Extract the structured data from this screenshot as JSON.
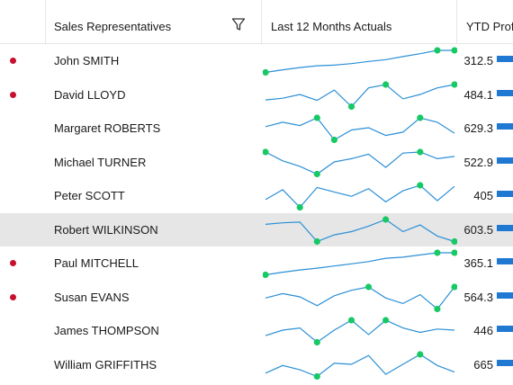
{
  "header": {
    "sales_rep": "Sales Representatives",
    "last12": "Last 12 Months Actuals",
    "ytd": "YTD Profit"
  },
  "colors": {
    "spark_line": "#2b8fd6",
    "spark_marker": "#17c964",
    "flag": "#c8102e",
    "bar": "#1f78d1",
    "selected_row": "#e6e6e6"
  },
  "rows": [
    {
      "name": "John SMITH",
      "flag": true,
      "ytd": "312.5",
      "selected": false,
      "spark": [
        0,
        0.12,
        0.22,
        0.3,
        0.33,
        0.4,
        0.5,
        0.58,
        0.72,
        0.85,
        1,
        1
      ]
    },
    {
      "name": "David LLOYD",
      "flag": true,
      "ytd": "484.1",
      "selected": false,
      "spark": [
        0.3,
        0.38,
        0.55,
        0.28,
        0.75,
        0,
        0.85,
        1,
        0.35,
        0.55,
        0.85,
        1
      ]
    },
    {
      "name": "Margaret ROBERTS",
      "flag": false,
      "ytd": "629.3",
      "selected": false,
      "spark": [
        0.6,
        0.8,
        0.65,
        1,
        0,
        0.45,
        0.55,
        0.2,
        0.35,
        1,
        0.8,
        0.3
      ]
    },
    {
      "name": "Michael TURNER",
      "flag": false,
      "ytd": "522.9",
      "selected": false,
      "spark": [
        1,
        0.6,
        0.35,
        0,
        0.55,
        0.7,
        0.9,
        0.3,
        0.95,
        1,
        0.7,
        0.8
      ]
    },
    {
      "name": "Peter SCOTT",
      "flag": false,
      "ytd": "405",
      "selected": false,
      "spark": [
        0.35,
        0.8,
        0,
        0.9,
        0.7,
        0.5,
        0.85,
        0.25,
        0.75,
        1,
        0.3,
        0.95
      ]
    },
    {
      "name": "Robert WILKINSON",
      "flag": false,
      "ytd": "603.5",
      "selected": true,
      "spark": [
        0.78,
        0.85,
        0.88,
        0,
        0.3,
        0.45,
        0.7,
        1,
        0.45,
        0.75,
        0.25,
        0
      ]
    },
    {
      "name": "Paul MITCHELL",
      "flag": true,
      "ytd": "365.1",
      "selected": false,
      "spark": [
        0,
        0.12,
        0.22,
        0.3,
        0.4,
        0.5,
        0.6,
        0.75,
        0.8,
        0.9,
        1,
        1
      ]
    },
    {
      "name": "Susan EVANS",
      "flag": true,
      "ytd": "564.3",
      "selected": false,
      "spark": [
        0.5,
        0.7,
        0.55,
        0.15,
        0.6,
        0.85,
        1,
        0.5,
        0.25,
        0.65,
        0,
        1
      ]
    },
    {
      "name": "James THOMPSON",
      "flag": false,
      "ytd": "446",
      "selected": false,
      "spark": [
        0.3,
        0.55,
        0.65,
        0,
        0.55,
        1,
        0.35,
        1,
        0.65,
        0.45,
        0.6,
        0.55
      ]
    },
    {
      "name": "William GRIFFITHS",
      "flag": false,
      "ytd": "665",
      "selected": false,
      "spark": [
        0.15,
        0.5,
        0.3,
        0,
        0.6,
        0.55,
        0.95,
        0.1,
        0.55,
        1,
        0.5,
        0.2
      ]
    }
  ]
}
